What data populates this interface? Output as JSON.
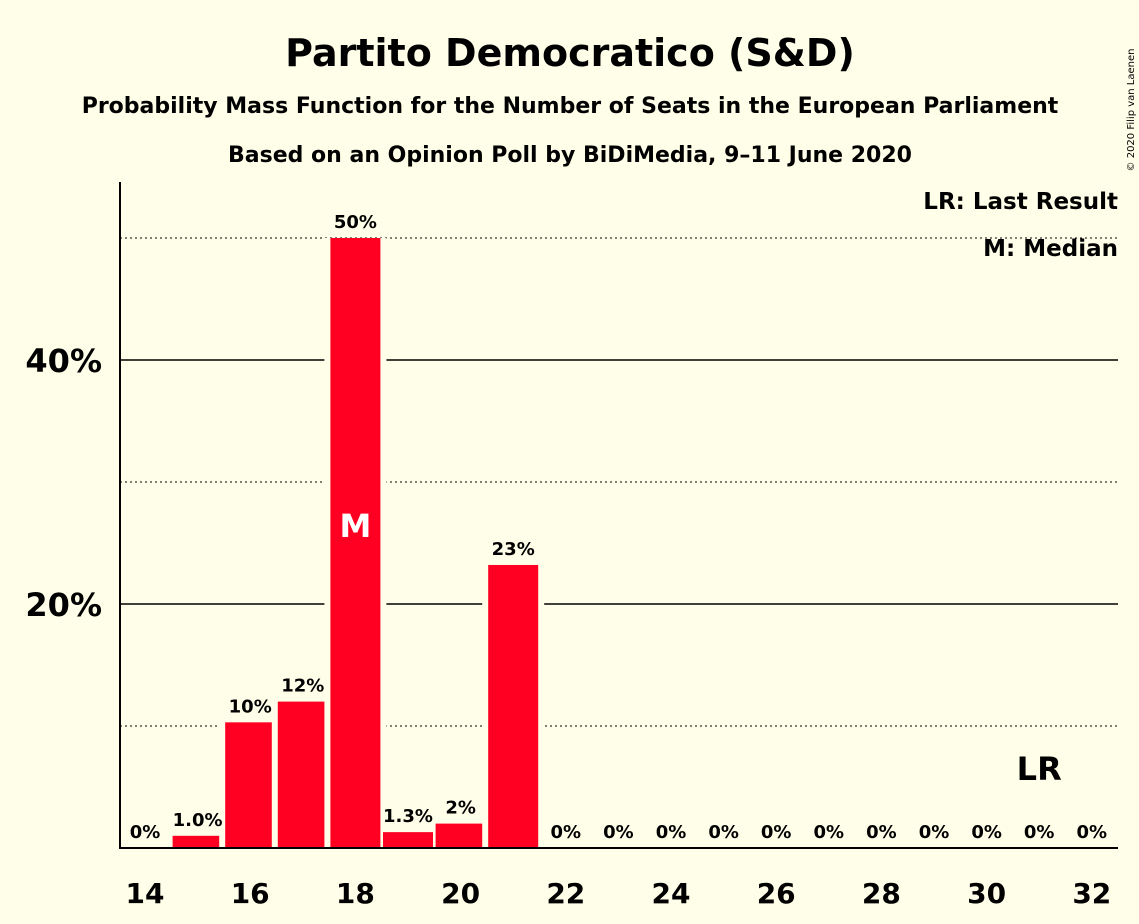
{
  "copyright": "© 2020 Filip van Laenen",
  "colors": {
    "bar": "#FF0022",
    "background": "#FFFEE8",
    "text": "#111111"
  },
  "chart_data": {
    "type": "bar",
    "title": "Partito Democratico (S&D)",
    "subtitle": "Probability Mass Function for the Number of Seats in the European Parliament",
    "subtitle2": "Based on an Opinion Poll by BiDiMedia, 9–11 June 2020",
    "x": [
      14,
      15,
      16,
      17,
      18,
      19,
      20,
      21,
      22,
      23,
      24,
      25,
      26,
      27,
      28,
      29,
      30,
      31,
      32
    ],
    "values": [
      0,
      1.0,
      10.3,
      12,
      50,
      1.3,
      2,
      23.2,
      0,
      0,
      0,
      0,
      0,
      0,
      0,
      0,
      0,
      0,
      0
    ],
    "data_labels": [
      "0%",
      "1.0%",
      "10%",
      "12%",
      "50%",
      "1.3%",
      "2%",
      "23%",
      "0%",
      "0%",
      "0%",
      "0%",
      "0%",
      "0%",
      "0%",
      "0%",
      "0%",
      "0%",
      "0%"
    ],
    "x_tick_labels": [
      "14",
      "16",
      "18",
      "20",
      "22",
      "24",
      "26",
      "28",
      "30",
      "32"
    ],
    "x_ticks": [
      14,
      16,
      18,
      20,
      22,
      24,
      26,
      28,
      30,
      32
    ],
    "y_tick_labels": [
      "20%",
      "40%"
    ],
    "y_ticks": [
      20,
      40
    ],
    "y_minor_gridlines": [
      10,
      30,
      50
    ],
    "ylim": [
      0,
      54
    ],
    "xlim": [
      13.5,
      32.5
    ],
    "median": {
      "x": 18,
      "label": "M"
    },
    "last_result": {
      "x": 31,
      "label": "LR"
    },
    "legend": [
      "LR: Last Result",
      "M: Median"
    ],
    "legend_position": "top-right"
  }
}
